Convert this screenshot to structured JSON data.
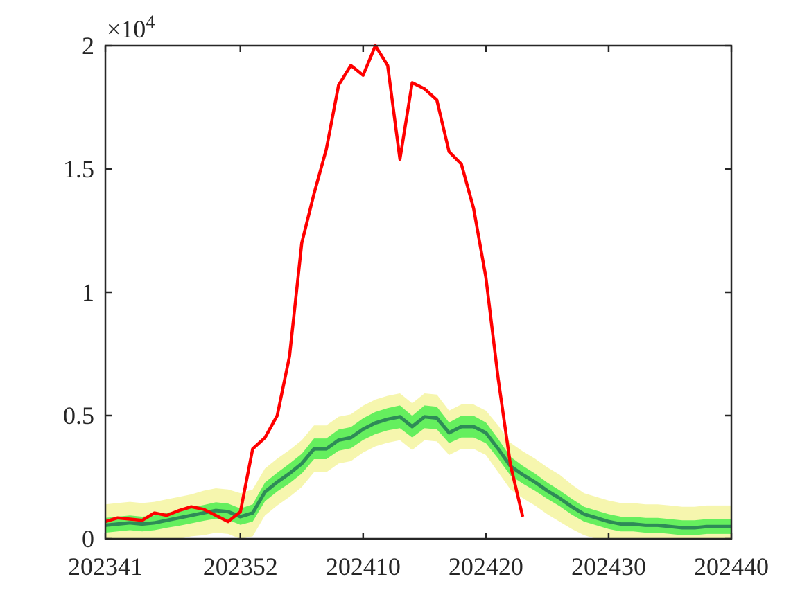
{
  "chart_data": {
    "type": "line",
    "title": "",
    "xlabel": "",
    "ylabel": "",
    "exponent_label": {
      "base": "×10",
      "power": "4"
    },
    "x_tick_labels": [
      "202341",
      "202352",
      "202410",
      "202420",
      "202430",
      "202440"
    ],
    "x_tick_index": [
      0,
      11,
      21,
      31,
      41,
      51
    ],
    "y_tick_labels": [
      "0",
      "0.5",
      "1",
      "1.5",
      "2"
    ],
    "y_tick_values": [
      0,
      5000,
      10000,
      15000,
      20000
    ],
    "xlim": [
      0,
      51
    ],
    "ylim": [
      0,
      20000
    ],
    "grid": false,
    "legend": "none",
    "series": [
      {
        "role": "observed",
        "color": "#ff0000",
        "x": [
          0,
          1,
          2,
          3,
          4,
          5,
          6,
          7,
          8,
          9,
          10,
          11,
          12,
          13,
          14,
          15,
          16,
          17,
          18,
          19,
          20,
          21,
          22,
          23,
          24,
          25,
          26,
          27,
          28,
          29,
          30,
          31,
          32,
          33,
          34
        ],
        "values": [
          700,
          850,
          800,
          750,
          1050,
          950,
          1150,
          1300,
          1200,
          950,
          700,
          1100,
          3650,
          4100,
          5000,
          7400,
          12000,
          14000,
          15800,
          18400,
          19200,
          18800,
          20000,
          19200,
          15400,
          18500,
          18250,
          17800,
          15700,
          15200,
          13400,
          10600,
          6500,
          3000,
          900
        ]
      },
      {
        "role": "forecast-median",
        "color": "#2e8b57",
        "x": [
          0,
          1,
          2,
          3,
          4,
          5,
          6,
          7,
          8,
          9,
          10,
          11,
          12,
          13,
          14,
          15,
          16,
          17,
          18,
          19,
          20,
          21,
          22,
          23,
          24,
          25,
          26,
          27,
          28,
          29,
          30,
          31,
          32,
          33,
          34,
          35,
          36,
          37,
          38,
          39,
          40,
          41,
          42,
          43,
          44,
          45,
          46,
          47,
          48,
          49,
          50,
          51
        ],
        "values": [
          550,
          600,
          650,
          600,
          650,
          750,
          850,
          950,
          1050,
          1150,
          1100,
          900,
          1050,
          1900,
          2300,
          2650,
          3050,
          3650,
          3650,
          4000,
          4100,
          4450,
          4700,
          4850,
          4950,
          4550,
          4950,
          4900,
          4300,
          4550,
          4550,
          4300,
          3650,
          2950,
          2600,
          2300,
          1950,
          1650,
          1300,
          1000,
          850,
          700,
          600,
          600,
          550,
          550,
          500,
          450,
          450,
          500,
          500,
          500
        ]
      }
    ],
    "bands": [
      {
        "role": "inner-interval",
        "color": "#55ee55",
        "halfwidth": [
          300,
          300,
          300,
          300,
          300,
          300,
          320,
          320,
          320,
          330,
          330,
          330,
          350,
          380,
          380,
          400,
          400,
          420,
          420,
          430,
          430,
          440,
          450,
          450,
          460,
          440,
          460,
          460,
          420,
          440,
          440,
          420,
          400,
          380,
          360,
          350,
          330,
          320,
          320,
          300,
          300,
          300,
          300,
          300,
          300,
          300,
          300,
          300,
          300,
          300,
          300,
          300
        ]
      },
      {
        "role": "outer-interval",
        "color": "#f5f5a0",
        "halfwidth": [
          850,
          850,
          850,
          850,
          850,
          850,
          850,
          850,
          900,
          900,
          900,
          950,
          950,
          950,
          950,
          950,
          950,
          950,
          950,
          950,
          950,
          950,
          950,
          950,
          950,
          950,
          950,
          950,
          900,
          900,
          900,
          900,
          950,
          950,
          950,
          950,
          950,
          950,
          900,
          850,
          850,
          850,
          850,
          850,
          850,
          850,
          850,
          850,
          850,
          850,
          850,
          850
        ]
      }
    ]
  }
}
